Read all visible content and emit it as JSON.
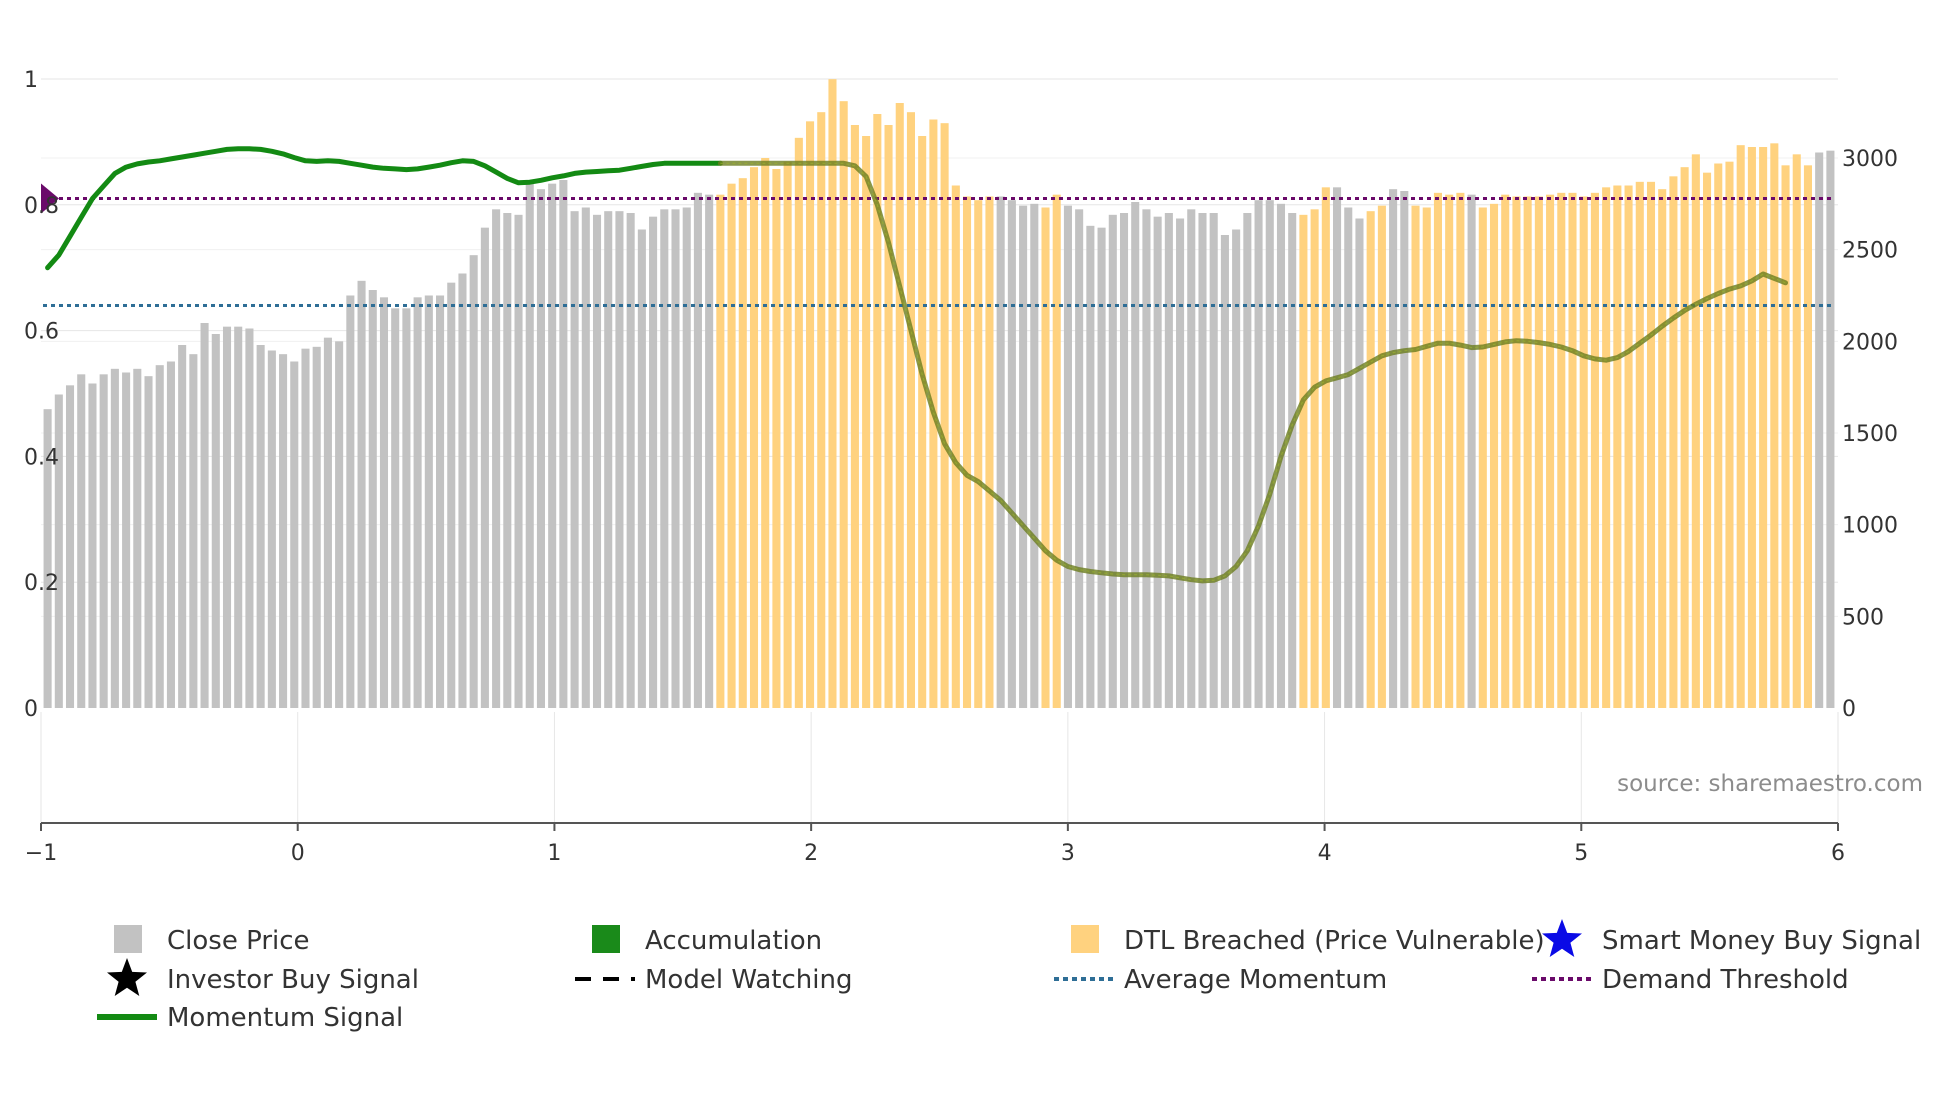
{
  "colors": {
    "close_price": "#c2c2c2",
    "dtl_breached": "#ffd27f",
    "accumulation": "#1a8a1a",
    "momentum": "#138a13",
    "momentum_weak": "#6b7d1e",
    "average_momentum": "#2e6e96",
    "demand_threshold": "#6a0a6a",
    "grid": "#e6e6e6",
    "axis": "#555555",
    "smart_money": "#0a0ae6",
    "investor": "#000000"
  },
  "source": "source: sharemaestro.com",
  "chart_data": {
    "type": "bar",
    "title": "",
    "left_axis": {
      "range": [
        0,
        1
      ],
      "ticks": [
        "0",
        "0.2",
        "0.4",
        "0.6",
        "0.8",
        "1"
      ]
    },
    "right_axis": {
      "range": [
        0,
        3435
      ],
      "ticks": [
        "0",
        "500",
        "1000",
        "1500",
        "2000",
        "2500",
        "3000"
      ]
    },
    "x_axis": {
      "range": [
        -1,
        6
      ],
      "ticks": [
        "−1",
        "0",
        "1",
        "2",
        "3",
        "4",
        "5",
        "6"
      ]
    },
    "close_price": [
      1630,
      1710,
      1760,
      1820,
      1770,
      1820,
      1850,
      1830,
      1850,
      1810,
      1870,
      1890,
      1980,
      1930,
      2100,
      2040,
      2080,
      2080,
      2070,
      1980,
      1950,
      1930,
      1890,
      1960,
      1970,
      2020,
      2000,
      2250,
      2330,
      2280,
      2240,
      2180,
      2180,
      2240,
      2250,
      2250,
      2320,
      2370,
      2470,
      2620,
      2720,
      2700,
      2690,
      2860,
      2830,
      2860,
      2880,
      2710,
      2730,
      2690,
      2710,
      2710,
      2700,
      2610,
      2680,
      2720,
      2720,
      2730,
      2810,
      2800,
      2800,
      2860,
      2890,
      2950,
      3000,
      2940,
      2980,
      3110,
      3200,
      3250,
      3430,
      3310,
      3180,
      3120,
      3240,
      3180,
      3300,
      3250,
      3120,
      3210,
      3190,
      2850,
      2790,
      2770,
      2790,
      2790,
      2770,
      2740,
      2750,
      2730,
      2800,
      2740,
      2720,
      2630,
      2620,
      2690,
      2700,
      2760,
      2720,
      2680,
      2700,
      2670,
      2720,
      2700,
      2700,
      2580,
      2610,
      2700,
      2770,
      2770,
      2750,
      2700,
      2690,
      2720,
      2840,
      2840,
      2730,
      2670,
      2710,
      2740,
      2830,
      2820,
      2740,
      2730,
      2810,
      2800,
      2810,
      2800,
      2730,
      2750,
      2800,
      2790,
      2790,
      2790,
      2800,
      2810,
      2810,
      2790,
      2810,
      2840,
      2850,
      2850,
      2870,
      2870,
      2830,
      2900,
      2950,
      3020,
      2920,
      2970,
      2980,
      3070,
      3060,
      3060,
      3080,
      2960,
      3020,
      2960,
      3030,
      3040
    ],
    "dtl_breached_ranges": [
      [
        60,
        79
      ],
      [
        80,
        84
      ],
      [
        89,
        90
      ],
      [
        112,
        114
      ],
      [
        118,
        119
      ],
      [
        122,
        126
      ],
      [
        128,
        157
      ]
    ],
    "momentum": [
      0.7,
      0.72,
      0.75,
      0.78,
      0.81,
      0.83,
      0.85,
      0.86,
      0.865,
      0.868,
      0.87,
      0.873,
      0.876,
      0.879,
      0.882,
      0.885,
      0.888,
      0.889,
      0.889,
      0.888,
      0.885,
      0.881,
      0.875,
      0.87,
      0.869,
      0.87,
      0.869,
      0.866,
      0.863,
      0.86,
      0.858,
      0.857,
      0.856,
      0.857,
      0.86,
      0.863,
      0.867,
      0.87,
      0.869,
      0.862,
      0.852,
      0.842,
      0.835,
      0.836,
      0.839,
      0.843,
      0.846,
      0.85,
      0.852,
      0.853,
      0.854,
      0.855,
      0.858,
      0.861,
      0.864,
      0.866,
      0.866,
      0.866,
      0.866,
      0.866,
      0.866,
      0.866,
      0.866,
      0.866,
      0.866,
      0.866,
      0.866,
      0.866,
      0.866,
      0.866,
      0.866,
      0.866,
      0.862,
      0.845,
      0.8,
      0.74,
      0.67,
      0.6,
      0.53,
      0.47,
      0.42,
      0.39,
      0.37,
      0.36,
      0.345,
      0.33,
      0.31,
      0.29,
      0.27,
      0.25,
      0.235,
      0.225,
      0.22,
      0.217,
      0.215,
      0.213,
      0.212,
      0.212,
      0.212,
      0.211,
      0.21,
      0.207,
      0.204,
      0.202,
      0.203,
      0.21,
      0.225,
      0.25,
      0.29,
      0.34,
      0.4,
      0.45,
      0.49,
      0.51,
      0.52,
      0.525,
      0.53,
      0.54,
      0.55,
      0.56,
      0.565,
      0.568,
      0.57,
      0.575,
      0.58,
      0.58,
      0.577,
      0.573,
      0.574,
      0.578,
      0.582,
      0.584,
      0.583,
      0.581,
      0.578,
      0.574,
      0.568,
      0.56,
      0.555,
      0.553,
      0.557,
      0.567,
      0.58,
      0.593,
      0.607,
      0.62,
      0.632,
      0.642,
      0.651,
      0.659,
      0.666,
      0.671,
      0.679,
      0.69,
      0.683,
      0.676
    ],
    "momentum_style_change_index": 60,
    "average_momentum": 0.64,
    "demand_threshold": 0.81
  },
  "legend": [
    {
      "label": "Close Price",
      "marker": "square"
    },
    {
      "label": "Accumulation",
      "marker": "square"
    },
    {
      "label": "DTL Breached (Price Vulnerable)",
      "marker": "square"
    },
    {
      "label": "Smart Money Buy Signal",
      "marker": "star-icon"
    },
    {
      "label": "Investor Buy Signal",
      "marker": "star-icon"
    },
    {
      "label": "Model Watching",
      "marker": "dash-line"
    },
    {
      "label": "Average Momentum",
      "marker": "dotted-line"
    },
    {
      "label": "Demand Threshold",
      "marker": "dotted-line"
    },
    {
      "label": "Momentum Signal",
      "marker": "solid-line"
    }
  ]
}
